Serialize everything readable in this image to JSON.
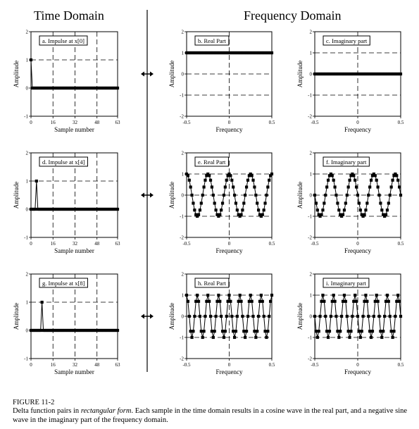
{
  "headings": {
    "time": "Time Domain",
    "freq": "Frequency Domain"
  },
  "caption": {
    "figure": "FIGURE 11-2",
    "text_before": "Delta function pairs in ",
    "text_italic": "rectangular form",
    "text_after": ".  Each sample in the time domain results in a cosine wave in the real part, and a negative sine wave in the imaginary part of the frequency domain."
  },
  "chart_data": [
    {
      "id": "a",
      "type": "line",
      "label": "a.  Impulse at x[0]",
      "xlabel": "Sample number",
      "ylabel": "Amplitude",
      "xlim": [
        0,
        63
      ],
      "ylim": [
        -1,
        2
      ],
      "xticks": [
        "0",
        "16",
        "32",
        "48",
        "63"
      ],
      "yticks": [
        "-1",
        "0",
        "1",
        "2"
      ],
      "series": [
        {
          "kind": "impulse",
          "impulse_index": 0,
          "n": 64
        }
      ]
    },
    {
      "id": "b",
      "type": "line",
      "label": "b.  Real Part",
      "xlabel": "Frequency",
      "ylabel": "Amplitude",
      "xlim": [
        -0.5,
        0.5
      ],
      "ylim": [
        -2,
        2
      ],
      "xticks": [
        "-0.5",
        "0",
        "0.5"
      ],
      "yticks": [
        "-2",
        "-1",
        "0",
        "1",
        "2"
      ],
      "series": [
        {
          "kind": "cos",
          "k": 0,
          "scale": 1,
          "n": 65
        }
      ]
    },
    {
      "id": "c",
      "type": "line",
      "label": "c.  Imaginary part",
      "xlabel": "Frequency",
      "ylabel": "Amplitude",
      "xlim": [
        -0.5,
        0.5
      ],
      "ylim": [
        -2,
        2
      ],
      "xticks": [
        "-0.5",
        "0",
        "0.5"
      ],
      "yticks": [
        "-2",
        "-1",
        "0",
        "1",
        "2"
      ],
      "series": [
        {
          "kind": "sin",
          "k": 0,
          "scale": -1,
          "n": 65
        }
      ]
    },
    {
      "id": "d",
      "type": "line",
      "label": "d.  Impulse at x[4]",
      "xlabel": "Sample number",
      "ylabel": "Amplitude",
      "xlim": [
        0,
        63
      ],
      "ylim": [
        -1,
        2
      ],
      "xticks": [
        "0",
        "16",
        "32",
        "48",
        "63"
      ],
      "yticks": [
        "-1",
        "0",
        "1",
        "2"
      ],
      "series": [
        {
          "kind": "impulse",
          "impulse_index": 4,
          "n": 64
        }
      ]
    },
    {
      "id": "e",
      "type": "line",
      "label": "e.  Real Part",
      "xlabel": "Frequency",
      "ylabel": "Amplitude",
      "xlim": [
        -0.5,
        0.5
      ],
      "ylim": [
        -2,
        2
      ],
      "xticks": [
        "-0.5",
        "0",
        "0.5"
      ],
      "yticks": [
        "-2",
        "-1",
        "0",
        "1",
        "2"
      ],
      "series": [
        {
          "kind": "cos",
          "k": 4,
          "scale": 1,
          "n": 65
        }
      ]
    },
    {
      "id": "f",
      "type": "line",
      "label": "f.  Imaginary part",
      "xlabel": "Frequency",
      "ylabel": "Amplitude",
      "xlim": [
        -0.5,
        0.5
      ],
      "ylim": [
        -2,
        2
      ],
      "xticks": [
        "-0.5",
        "0",
        "0.5"
      ],
      "yticks": [
        "-2",
        "-1",
        "0",
        "1",
        "2"
      ],
      "series": [
        {
          "kind": "sin",
          "k": 4,
          "scale": -1,
          "n": 65
        }
      ]
    },
    {
      "id": "g",
      "type": "line",
      "label": "g.  Impulse at x[8]",
      "xlabel": "Sample number",
      "ylabel": "Amplitude",
      "xlim": [
        0,
        63
      ],
      "ylim": [
        -1,
        2
      ],
      "xticks": [
        "0",
        "16",
        "32",
        "48",
        "63"
      ],
      "yticks": [
        "-1",
        "0",
        "1",
        "2"
      ],
      "series": [
        {
          "kind": "impulse",
          "impulse_index": 8,
          "n": 64
        }
      ]
    },
    {
      "id": "h",
      "type": "line",
      "label": "h.  Real Part",
      "xlabel": "Frequency",
      "ylabel": "Amplitude",
      "xlim": [
        -0.5,
        0.5
      ],
      "ylim": [
        -2,
        2
      ],
      "xticks": [
        "-0.5",
        "0",
        "0.5"
      ],
      "yticks": [
        "-2",
        "-1",
        "0",
        "1",
        "2"
      ],
      "series": [
        {
          "kind": "cos",
          "k": 8,
          "scale": 1,
          "n": 65
        }
      ]
    },
    {
      "id": "i",
      "type": "line",
      "label": "i.  Imaginary part",
      "xlabel": "Frequency",
      "ylabel": "Amplitude",
      "xlim": [
        -0.5,
        0.5
      ],
      "ylim": [
        -2,
        2
      ],
      "xticks": [
        "-0.5",
        "0",
        "0.5"
      ],
      "yticks": [
        "-2",
        "-1",
        "0",
        "1",
        "2"
      ],
      "series": [
        {
          "kind": "sin",
          "k": 8,
          "scale": -1,
          "n": 65
        }
      ]
    }
  ]
}
